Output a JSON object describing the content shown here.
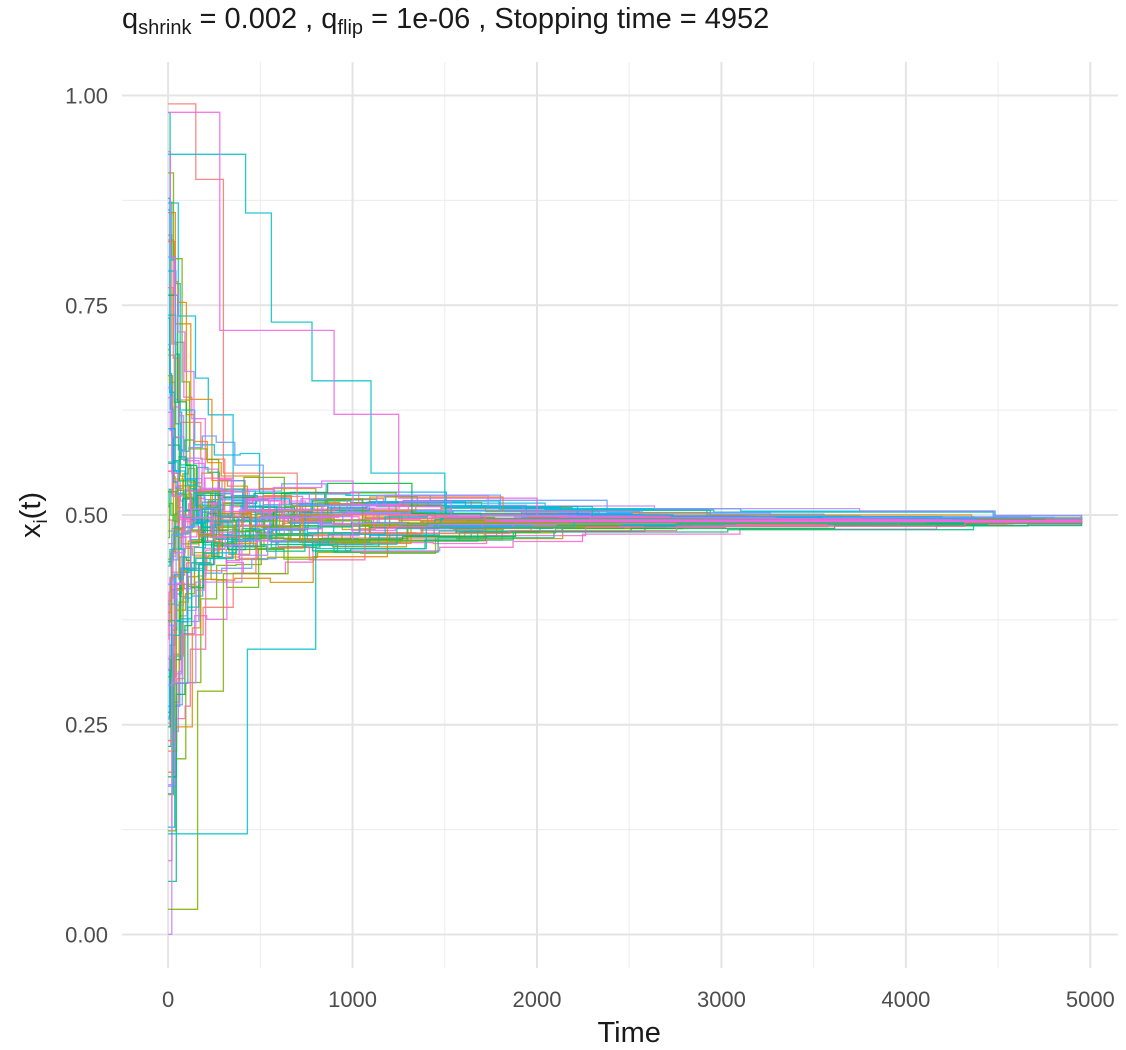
{
  "chart_data": {
    "type": "line",
    "title": {
      "q_shrink_symbol": "q",
      "q_shrink_sub": "shrink",
      "q_shrink_value": " = 0.002 ,  ",
      "q_flip_symbol": "q",
      "q_flip_sub": "flip",
      "q_flip_value": " = 1e-06 ,  Stopping time = 4952"
    },
    "xlabel": "Time",
    "ylabel": {
      "base": "x",
      "sub": "i",
      "rest": "(t)"
    },
    "xlim": [
      -250,
      5150
    ],
    "ylim": [
      -0.04,
      1.04
    ],
    "x_ticks": [
      0,
      1000,
      2000,
      3000,
      4000,
      5000
    ],
    "x_tick_labels": [
      "0",
      "1000",
      "2000",
      "3000",
      "4000",
      "5000"
    ],
    "y_ticks": [
      0,
      0.25,
      0.5,
      0.75,
      1
    ],
    "y_tick_labels": [
      "0.00",
      "0.25",
      "0.50",
      "0.75",
      "1.00"
    ],
    "grid": true,
    "legend": "none",
    "step_lines": true,
    "series_count": 80,
    "stopping_time": 4952,
    "consensus_value": 0.493,
    "initial_range": [
      0.0,
      0.995
    ],
    "sample_series": [
      {
        "color": "#F8766D",
        "points": [
          [
            0,
            0.99
          ],
          [
            150,
            0.99
          ],
          [
            150,
            0.9
          ],
          [
            300,
            0.9
          ],
          [
            300,
            0.55
          ],
          [
            700,
            0.55
          ],
          [
            700,
            0.5
          ],
          [
            1500,
            0.5
          ],
          [
            1500,
            0.495
          ],
          [
            4952,
            0.493
          ]
        ]
      },
      {
        "color": "#00BFC4",
        "points": [
          [
            0,
            0.93
          ],
          [
            420,
            0.93
          ],
          [
            420,
            0.86
          ],
          [
            560,
            0.86
          ],
          [
            560,
            0.73
          ],
          [
            780,
            0.73
          ],
          [
            780,
            0.66
          ],
          [
            1100,
            0.66
          ],
          [
            1100,
            0.55
          ],
          [
            1500,
            0.55
          ],
          [
            1500,
            0.51
          ],
          [
            2300,
            0.51
          ],
          [
            2300,
            0.497
          ],
          [
            4952,
            0.493
          ]
        ]
      },
      {
        "color": "#C77CFF",
        "points": [
          [
            0,
            0.0
          ],
          [
            20,
            0.0
          ],
          [
            20,
            0.3
          ],
          [
            150,
            0.3
          ],
          [
            150,
            0.42
          ],
          [
            400,
            0.42
          ],
          [
            400,
            0.47
          ],
          [
            1000,
            0.47
          ],
          [
            1000,
            0.49
          ],
          [
            4952,
            0.493
          ]
        ]
      },
      {
        "color": "#7CAE00",
        "points": [
          [
            0,
            0.03
          ],
          [
            160,
            0.03
          ],
          [
            160,
            0.29
          ],
          [
            300,
            0.29
          ],
          [
            300,
            0.43
          ],
          [
            650,
            0.43
          ],
          [
            650,
            0.47
          ],
          [
            1300,
            0.47
          ],
          [
            1300,
            0.49
          ],
          [
            4952,
            0.493
          ]
        ]
      },
      {
        "color": "#00BFC4",
        "points": [
          [
            0,
            0.12
          ],
          [
            430,
            0.12
          ],
          [
            430,
            0.34
          ],
          [
            800,
            0.34
          ],
          [
            800,
            0.46
          ],
          [
            1400,
            0.46
          ],
          [
            1400,
            0.485
          ],
          [
            2200,
            0.485
          ],
          [
            2200,
            0.492
          ],
          [
            4952,
            0.493
          ]
        ]
      },
      {
        "color": "#F564E3",
        "points": [
          [
            0,
            0.98
          ],
          [
            280,
            0.98
          ],
          [
            280,
            0.72
          ],
          [
            900,
            0.72
          ],
          [
            900,
            0.62
          ],
          [
            1250,
            0.62
          ],
          [
            1250,
            0.52
          ],
          [
            2000,
            0.52
          ],
          [
            2000,
            0.498
          ],
          [
            4952,
            0.493
          ]
        ]
      }
    ]
  }
}
